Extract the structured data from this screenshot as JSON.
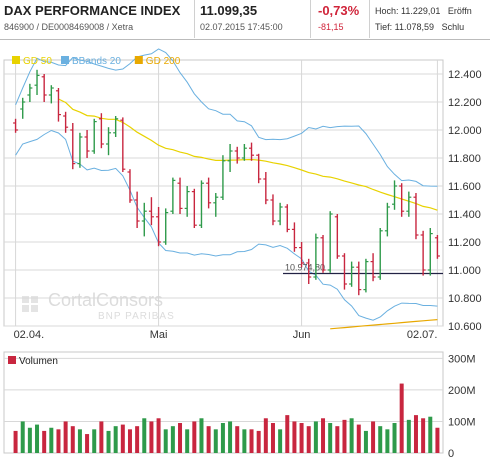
{
  "header": {
    "name": "DAX PERFORMANCE INDEX",
    "ids": "846900 / DE0008469008 / Xetra",
    "last": "11.099,35",
    "datetime": "02.07.2015 17:45:00",
    "change_pct": "-0,73%",
    "change_abs": "-81,15",
    "high_label": "Hoch: 11.229,01",
    "low_label": "Tief: 11.078,59",
    "open_label": "Eröffn",
    "close_label": "Schlu"
  },
  "colors": {
    "up": "#2e9a4a",
    "down": "#c8263f",
    "gd50": "#e8d200",
    "gd200": "#e8a800",
    "bbands": "#6ab0e0",
    "grid": "#d8d8d8",
    "reference": "#222244"
  },
  "watermark": {
    "line1": "CortalConsors",
    "line2": "BNP PARIBAS"
  },
  "chart_data": [
    {
      "type": "candlestick",
      "legend_placement": "top-left",
      "legend": [
        "GD 50",
        "BBands 20",
        "GD 200"
      ],
      "x_tick_labels": [
        "02.04.",
        "Mai",
        "Jun",
        "02.07."
      ],
      "x_tick_index": [
        0,
        20,
        40,
        59
      ],
      "y_ticks": [
        10600,
        10800,
        11000,
        11200,
        11400,
        11600,
        11800,
        12000,
        12200,
        12400
      ],
      "y_tick_labels": [
        "10.600",
        "10.800",
        "11.000",
        "11.200",
        "11.400",
        "11.600",
        "11.800",
        "12.000",
        "12.200",
        "12.400"
      ],
      "ylim": [
        10600,
        12500
      ],
      "grid": true,
      "reference_line": {
        "value": 10974.8,
        "label": "10.974,80"
      },
      "candles": [
        {
          "o": 12050,
          "h": 12080,
          "l": 11980,
          "c": 12000
        },
        {
          "o": 12150,
          "h": 12230,
          "l": 12080,
          "c": 12200
        },
        {
          "o": 12250,
          "h": 12330,
          "l": 12200,
          "c": 12300
        },
        {
          "o": 12320,
          "h": 12430,
          "l": 12250,
          "c": 12390
        },
        {
          "o": 12380,
          "h": 12400,
          "l": 12200,
          "c": 12250
        },
        {
          "o": 12250,
          "h": 12320,
          "l": 12190,
          "c": 12300
        },
        {
          "o": 12280,
          "h": 12300,
          "l": 12060,
          "c": 12110
        },
        {
          "o": 12100,
          "h": 12130,
          "l": 11980,
          "c": 12020
        },
        {
          "o": 12000,
          "h": 12050,
          "l": 11720,
          "c": 11760
        },
        {
          "o": 11760,
          "h": 11980,
          "l": 11730,
          "c": 11950
        },
        {
          "o": 11950,
          "h": 12000,
          "l": 11800,
          "c": 11850
        },
        {
          "o": 11850,
          "h": 12080,
          "l": 11830,
          "c": 12060
        },
        {
          "o": 12080,
          "h": 12120,
          "l": 11870,
          "c": 11900
        },
        {
          "o": 11900,
          "h": 12020,
          "l": 11820,
          "c": 11980
        },
        {
          "o": 11980,
          "h": 12100,
          "l": 11950,
          "c": 12080
        },
        {
          "o": 12070,
          "h": 12090,
          "l": 11700,
          "c": 11720
        },
        {
          "o": 11700,
          "h": 11720,
          "l": 11480,
          "c": 11500
        },
        {
          "o": 11500,
          "h": 11560,
          "l": 11300,
          "c": 11350
        },
        {
          "o": 11350,
          "h": 11480,
          "l": 11240,
          "c": 11420
        },
        {
          "o": 11420,
          "h": 11520,
          "l": 11320,
          "c": 11380
        },
        {
          "o": 11380,
          "h": 11450,
          "l": 11170,
          "c": 11200
        },
        {
          "o": 11200,
          "h": 11440,
          "l": 11180,
          "c": 11410
        },
        {
          "o": 11420,
          "h": 11660,
          "l": 11400,
          "c": 11640
        },
        {
          "o": 11620,
          "h": 11660,
          "l": 11400,
          "c": 11440
        },
        {
          "o": 11440,
          "h": 11600,
          "l": 11380,
          "c": 11560
        },
        {
          "o": 11560,
          "h": 11580,
          "l": 11300,
          "c": 11320
        },
        {
          "o": 11320,
          "h": 11640,
          "l": 11300,
          "c": 11620
        },
        {
          "o": 11620,
          "h": 11660,
          "l": 11440,
          "c": 11480
        },
        {
          "o": 11480,
          "h": 11550,
          "l": 11380,
          "c": 11520
        },
        {
          "o": 11520,
          "h": 11820,
          "l": 11500,
          "c": 11780
        },
        {
          "o": 11780,
          "h": 11900,
          "l": 11700,
          "c": 11850
        },
        {
          "o": 11850,
          "h": 11880,
          "l": 11760,
          "c": 11800
        },
        {
          "o": 11800,
          "h": 11900,
          "l": 11780,
          "c": 11870
        },
        {
          "o": 11870,
          "h": 11910,
          "l": 11780,
          "c": 11820
        },
        {
          "o": 11820,
          "h": 11830,
          "l": 11620,
          "c": 11650
        },
        {
          "o": 11650,
          "h": 11700,
          "l": 11470,
          "c": 11500
        },
        {
          "o": 11500,
          "h": 11540,
          "l": 11320,
          "c": 11350
        },
        {
          "o": 11350,
          "h": 11480,
          "l": 11320,
          "c": 11450
        },
        {
          "o": 11450,
          "h": 11470,
          "l": 11270,
          "c": 11290
        },
        {
          "o": 11290,
          "h": 11340,
          "l": 11130,
          "c": 11160
        },
        {
          "o": 11160,
          "h": 11200,
          "l": 11020,
          "c": 11050
        },
        {
          "o": 11050,
          "h": 11080,
          "l": 10900,
          "c": 10950
        },
        {
          "o": 10950,
          "h": 11260,
          "l": 10930,
          "c": 11230
        },
        {
          "o": 11230,
          "h": 11250,
          "l": 10980,
          "c": 11000
        },
        {
          "o": 11000,
          "h": 11420,
          "l": 10980,
          "c": 11400
        },
        {
          "o": 11380,
          "h": 11400,
          "l": 11080,
          "c": 11100
        },
        {
          "o": 11100,
          "h": 11120,
          "l": 10860,
          "c": 10900
        },
        {
          "o": 10900,
          "h": 11060,
          "l": 10880,
          "c": 11020
        },
        {
          "o": 11020,
          "h": 11060,
          "l": 10820,
          "c": 10860
        },
        {
          "o": 10860,
          "h": 11080,
          "l": 10840,
          "c": 11060
        },
        {
          "o": 11060,
          "h": 11120,
          "l": 10920,
          "c": 10950
        },
        {
          "o": 10950,
          "h": 11300,
          "l": 10930,
          "c": 11280
        },
        {
          "o": 11280,
          "h": 11480,
          "l": 11240,
          "c": 11450
        },
        {
          "o": 11470,
          "h": 11640,
          "l": 11430,
          "c": 11600
        },
        {
          "o": 11600,
          "h": 11620,
          "l": 11380,
          "c": 11420
        },
        {
          "o": 11420,
          "h": 11560,
          "l": 11380,
          "c": 11520
        },
        {
          "o": 11520,
          "h": 11550,
          "l": 11220,
          "c": 11250
        },
        {
          "o": 11250,
          "h": 11280,
          "l": 10960,
          "c": 11000
        },
        {
          "o": 11000,
          "h": 11300,
          "l": 10960,
          "c": 11260
        },
        {
          "o": 11230,
          "h": 11250,
          "l": 11080,
          "c": 11100
        }
      ]
    },
    {
      "type": "bar",
      "title": "Volumen",
      "y_ticks": [
        0,
        100,
        200,
        300
      ],
      "y_tick_labels": [
        "0",
        "100M",
        "200M",
        "300M"
      ],
      "ylim": [
        0,
        320
      ],
      "grid": true,
      "values": [
        70,
        100,
        80,
        90,
        70,
        80,
        75,
        100,
        85,
        75,
        60,
        75,
        100,
        70,
        85,
        90,
        75,
        85,
        110,
        100,
        110,
        75,
        85,
        95,
        75,
        100,
        110,
        85,
        75,
        95,
        100,
        85,
        75,
        75,
        70,
        110,
        95,
        75,
        120,
        100,
        95,
        85,
        100,
        110,
        95,
        85,
        105,
        110,
        90,
        70,
        100,
        85,
        75,
        95,
        220,
        105,
        120,
        110,
        115,
        80
      ]
    }
  ]
}
